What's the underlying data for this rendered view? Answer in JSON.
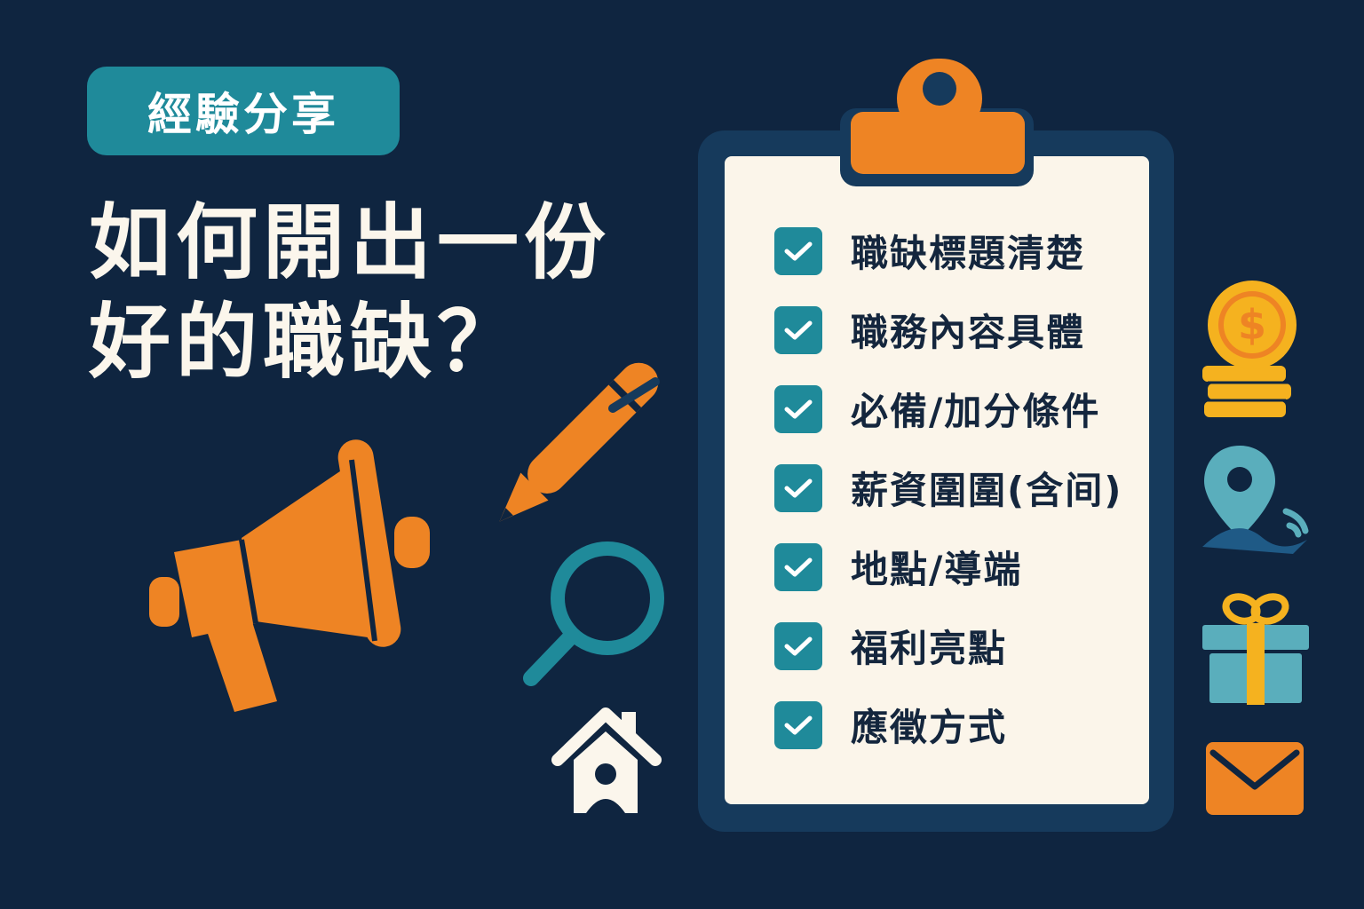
{
  "badge": {
    "label": "經驗分享"
  },
  "headline": {
    "line1": "如何開出一份",
    "line2": "好的職缺？"
  },
  "checklist": {
    "items": [
      {
        "label": "職缺標題清楚"
      },
      {
        "label": "職務內容具體"
      },
      {
        "label": "必備/加分條件"
      },
      {
        "label": "薪資圍圍(含间)"
      },
      {
        "label": "地點/導端"
      },
      {
        "label": "福利亮點"
      },
      {
        "label": "應徵方式"
      }
    ]
  },
  "colors": {
    "background": "#0f2540",
    "accent_orange": "#ee8424",
    "accent_teal": "#1f8a9a",
    "paper": "#fbf5ea",
    "text_light": "#fbf6ec"
  },
  "icons": [
    "megaphone-icon",
    "pen-icon",
    "magnifier-icon",
    "house-icon",
    "clipboard-icon",
    "check-icon",
    "coin-stack-icon",
    "location-pin-icon",
    "gift-icon",
    "envelope-icon"
  ]
}
